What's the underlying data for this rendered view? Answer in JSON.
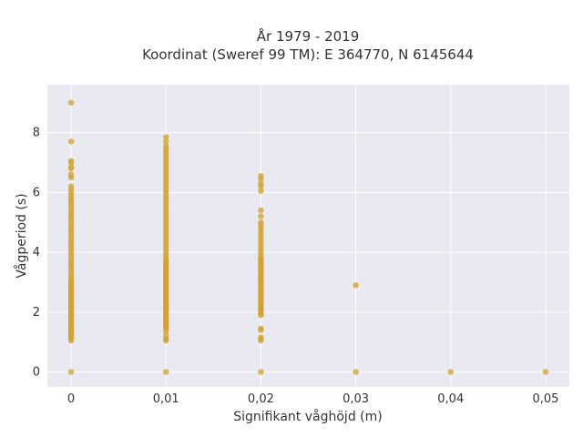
{
  "chart_data": {
    "type": "scatter",
    "title_lines": [
      "År 1979 - 2019",
      "Koordinat (Sweref 99 TM): E 364770, N 6145644"
    ],
    "xlabel": "Signifikant våghöjd (m)",
    "ylabel": "Vågperiod (s)",
    "x_ticks": [
      0,
      0.01,
      0.02,
      0.03,
      0.04,
      0.05
    ],
    "x_tick_labels": [
      "0",
      "0,01",
      "0,02",
      "0,03",
      "0,04",
      "0,05"
    ],
    "y_ticks": [
      0,
      2,
      4,
      6,
      8
    ],
    "y_tick_labels": [
      "0",
      "2",
      "4",
      "6",
      "8"
    ],
    "xlim": [
      -0.0025,
      0.0525
    ],
    "ylim": [
      -0.5,
      9.6
    ],
    "grid": true,
    "colors": {
      "point": "#d4a32d",
      "plot_background": "#e9e9f1",
      "grid": "#ffffff"
    },
    "series": [
      {
        "x": [
          0,
          0,
          0,
          0,
          0,
          0,
          0,
          0,
          0,
          0,
          0,
          0,
          0,
          0,
          0,
          0,
          0,
          0,
          0,
          0,
          0,
          0,
          0,
          0,
          0,
          0,
          0,
          0,
          0,
          0,
          0,
          0,
          0,
          0,
          0,
          0,
          0,
          0,
          0,
          0,
          0,
          0,
          0,
          0,
          0,
          0,
          0,
          0,
          0,
          0,
          0,
          0,
          0,
          0,
          0,
          0,
          0,
          0,
          0,
          0,
          0,
          0,
          0,
          0,
          0,
          0,
          0,
          0,
          0,
          0,
          0,
          0,
          0,
          0,
          0,
          0,
          0,
          0,
          0,
          0,
          0,
          0,
          0.01,
          0.01,
          0.01,
          0.01,
          0.01,
          0.01,
          0.01,
          0.01,
          0.01,
          0.01,
          0.01,
          0.01,
          0.01,
          0.01,
          0.01,
          0.01,
          0.01,
          0.01,
          0.01,
          0.01,
          0.01,
          0.01,
          0.01,
          0.01,
          0.01,
          0.01,
          0.01,
          0.01,
          0.01,
          0.01,
          0.01,
          0.01,
          0.01,
          0.01,
          0.01,
          0.01,
          0.01,
          0.01,
          0.01,
          0.01,
          0.01,
          0.01,
          0.01,
          0.01,
          0.01,
          0.01,
          0.01,
          0.01,
          0.01,
          0.01,
          0.01,
          0.01,
          0.01,
          0.01,
          0.01,
          0.01,
          0.01,
          0.01,
          0.01,
          0.01,
          0.01,
          0.01,
          0.01,
          0.01,
          0.01,
          0.01,
          0.01,
          0.01,
          0.01,
          0.01,
          0.01,
          0.01,
          0.01,
          0.01,
          0.01,
          0.01,
          0.01,
          0.01,
          0.01,
          0.01,
          0.01,
          0.01,
          0.01,
          0.01,
          0.01,
          0.01,
          0.01,
          0.01,
          0.01,
          0.01,
          0.01,
          0.01,
          0.02,
          0.02,
          0.02,
          0.02,
          0.02,
          0.02,
          0.02,
          0.02,
          0.02,
          0.02,
          0.02,
          0.02,
          0.02,
          0.02,
          0.02,
          0.02,
          0.02,
          0.02,
          0.02,
          0.02,
          0.02,
          0.02,
          0.02,
          0.02,
          0.02,
          0.02,
          0.02,
          0.02,
          0.02,
          0.02,
          0.02,
          0.02,
          0.02,
          0.02,
          0.02,
          0.02,
          0.02,
          0.02,
          0.02,
          0.02,
          0.02,
          0.02,
          0.02,
          0.02,
          0.02,
          0.02,
          0.02,
          0.02,
          0.02,
          0.02,
          0.02,
          0.02,
          0.02,
          0.02,
          0.02,
          0.02,
          0.02,
          0.02,
          0.02,
          0.02,
          0.02,
          0.02,
          0.02,
          0.02,
          0.03,
          0.03,
          0.04,
          0.05
        ],
        "y": [
          0,
          1.1,
          1.2,
          1.3,
          1.4,
          1.5,
          1.6,
          1.7,
          1.8,
          1.9,
          2.0,
          2.1,
          2.2,
          2.3,
          2.4,
          2.5,
          2.6,
          2.7,
          2.8,
          2.9,
          3.0,
          3.1,
          3.2,
          3.3,
          3.4,
          3.5,
          3.6,
          3.7,
          3.8,
          3.9,
          4.0,
          4.1,
          4.2,
          4.3,
          4.4,
          4.5,
          4.6,
          4.7,
          4.8,
          4.9,
          5.0,
          5.1,
          5.2,
          5.3,
          5.4,
          5.5,
          5.6,
          5.7,
          5.8,
          5.9,
          6.0,
          6.1,
          6.2,
          1.05,
          1.15,
          1.25,
          1.35,
          1.45,
          1.55,
          1.65,
          1.75,
          1.85,
          1.95,
          2.05,
          2.15,
          2.25,
          2.35,
          2.45,
          2.55,
          2.65,
          2.75,
          2.85,
          2.95,
          3.05,
          6.5,
          6.6,
          6.8,
          6.85,
          7.0,
          7.05,
          7.7,
          9.0,
          0,
          1.05,
          1.1,
          1.2,
          1.35,
          1.45,
          1.55,
          1.65,
          1.75,
          1.85,
          1.95,
          2.05,
          2.15,
          2.25,
          2.35,
          2.45,
          2.55,
          2.65,
          2.75,
          2.85,
          2.95,
          3.05,
          3.15,
          3.25,
          3.35,
          3.45,
          3.55,
          3.65,
          3.75,
          3.85,
          3.95,
          4.05,
          4.15,
          4.25,
          4.35,
          4.45,
          4.55,
          4.65,
          4.75,
          4.85,
          4.95,
          5.05,
          5.15,
          5.25,
          5.35,
          5.45,
          5.55,
          5.65,
          5.75,
          5.85,
          5.95,
          6.05,
          6.15,
          6.25,
          6.35,
          6.45,
          6.55,
          6.65,
          6.75,
          6.85,
          6.95,
          7.05,
          7.15,
          7.25,
          7.35,
          7.45,
          7.55,
          7.7,
          7.85,
          1.5,
          1.6,
          1.7,
          1.8,
          1.9,
          2.0,
          2.1,
          2.2,
          2.3,
          2.4,
          2.5,
          2.6,
          2.7,
          2.8,
          2.9,
          3.0,
          3.1,
          3.2,
          3.3,
          3.4,
          3.5,
          3.6,
          3.7,
          0,
          1.05,
          1.1,
          1.15,
          1.4,
          1.45,
          1.9,
          2.0,
          2.1,
          2.2,
          2.3,
          2.4,
          2.5,
          2.6,
          2.7,
          2.8,
          2.9,
          3.0,
          3.1,
          3.2,
          3.3,
          3.4,
          3.5,
          3.6,
          3.7,
          3.8,
          3.9,
          4.0,
          4.1,
          4.2,
          4.3,
          4.4,
          4.5,
          4.6,
          4.7,
          4.8,
          4.9,
          5.0,
          5.2,
          5.4,
          6.05,
          6.2,
          6.3,
          6.45,
          6.55,
          1.95,
          2.05,
          2.15,
          2.25,
          2.35,
          2.45,
          2.55,
          2.65,
          2.75,
          2.85,
          2.95,
          3.05,
          3.15,
          3.25,
          3.35,
          3.45,
          3.55,
          3.65,
          3.75,
          0,
          2.9,
          0,
          0
        ]
      }
    ]
  }
}
